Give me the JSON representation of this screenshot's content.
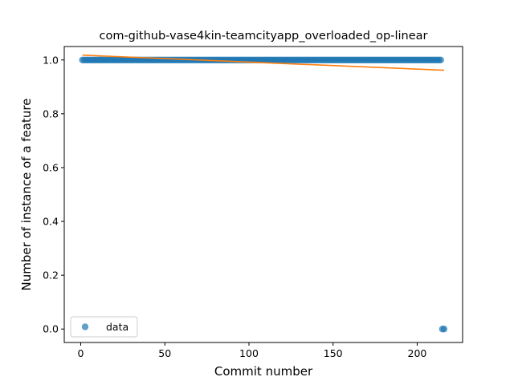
{
  "chart_data": {
    "type": "scatter",
    "title": "com-github-vase4kin-teamcityapp_overloaded_op-linear",
    "xlabel": "Commit number",
    "ylabel": "Number of instance of a feature",
    "xlim": [
      -9.8,
      227
    ],
    "ylim": [
      -0.05,
      1.05
    ],
    "xticks": [
      0,
      50,
      100,
      150,
      200
    ],
    "xtick_labels": [
      "0",
      "50",
      "100",
      "150",
      "200"
    ],
    "yticks": [
      0.0,
      0.2,
      0.4,
      0.6,
      0.8,
      1.0
    ],
    "ytick_labels": [
      "0.0",
      "0.2",
      "0.4",
      "0.6",
      "0.8",
      "1.0"
    ],
    "grid": false,
    "legend": {
      "position": "bottom-left",
      "entries": [
        {
          "label": "data",
          "marker": "circle",
          "color": "#1f77b4"
        }
      ]
    },
    "series": [
      {
        "name": "data",
        "kind": "scatter",
        "color": "#1f77b4",
        "x_range": [
          1,
          214
        ],
        "y": 1.0,
        "extra_points": [
          {
            "x": 215,
            "y": 0.0
          },
          {
            "x": 216,
            "y": 0.0
          }
        ]
      },
      {
        "kind": "line",
        "color": "#ff7f0e",
        "x": [
          1,
          216
        ],
        "y": [
          1.018,
          0.962
        ]
      }
    ]
  }
}
